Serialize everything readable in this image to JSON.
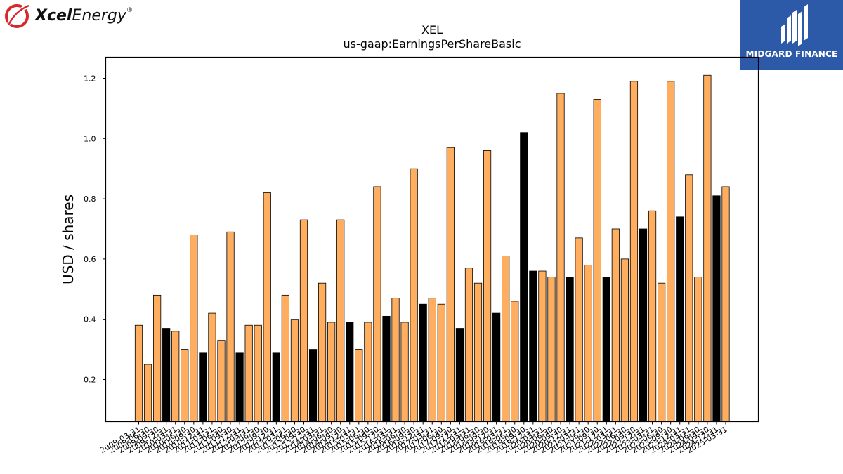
{
  "brand": {
    "name_bold": "Xcel",
    "name_rest": "Energy",
    "registered": "®"
  },
  "partner": {
    "name": "MIDGARD FINANCE",
    "bg_color": "#2c5aa8"
  },
  "colors": {
    "annual_bar": "#000000",
    "quarterly_bar": "#ffad5e",
    "bar_edge": "#000000",
    "xcel_red": "#d9272e"
  },
  "chart_data": {
    "type": "bar",
    "title": "XEL",
    "subtitle": "us-gaap:EarningsPerShareBasic",
    "xlabel": "",
    "ylabel": "USD / shares",
    "ylim": [
      0.06,
      1.27
    ],
    "yticks": [
      0.2,
      0.4,
      0.6,
      0.8,
      1.0,
      1.2
    ],
    "ytick_labels": [
      "0.2",
      "0.4",
      "0.6",
      "0.8",
      "1.0",
      "1.2"
    ],
    "grid": false,
    "categories": [
      "2009-03-31",
      "2009-06-30",
      "2009-09-30",
      "2009-12-31",
      "2010-03-31",
      "2010-06-30",
      "2010-09-30",
      "2010-12-31",
      "2011-03-31",
      "2011-06-30",
      "2011-09-30",
      "2011-12-31",
      "2012-03-31",
      "2012-06-30",
      "2012-09-30",
      "2012-12-31",
      "2013-03-31",
      "2013-06-30",
      "2013-09-30",
      "2013-12-31",
      "2014-03-31",
      "2014-06-30",
      "2014-09-30",
      "2014-12-31",
      "2015-03-31",
      "2015-06-30",
      "2015-09-30",
      "2015-12-31",
      "2016-03-31",
      "2016-06-30",
      "2016-09-30",
      "2016-12-31",
      "2017-03-31",
      "2017-06-30",
      "2017-09-30",
      "2017-12-31",
      "2018-03-31",
      "2018-06-30",
      "2018-09-30",
      "2018-12-31",
      "2019-03-31",
      "2019-06-30",
      "2019-09-30",
      "2019-12-31",
      "2020-03-31",
      "2020-06-30",
      "2020-09-30",
      "2020-12-31",
      "2021-03-31",
      "2021-06-30",
      "2021-09-30",
      "2021-12-31",
      "2022-03-31",
      "2022-06-30",
      "2022-09-30",
      "2022-12-31",
      "2023-03-31",
      "2023-06-30",
      "2023-09-30",
      "2023-12-31",
      "2024-03-31",
      "2024-06-30",
      "2024-09-30",
      "2024-12-31",
      "2025-03-31"
    ],
    "values": [
      0.38,
      0.25,
      0.48,
      0.37,
      0.36,
      0.3,
      0.68,
      0.29,
      0.42,
      0.33,
      0.69,
      0.29,
      0.38,
      0.38,
      0.82,
      0.29,
      0.48,
      0.4,
      0.73,
      0.3,
      0.52,
      0.39,
      0.73,
      0.39,
      0.3,
      0.39,
      0.84,
      0.41,
      0.47,
      0.39,
      0.9,
      0.45,
      0.47,
      0.45,
      0.97,
      0.37,
      0.57,
      0.52,
      0.96,
      0.42,
      0.61,
      0.46,
      1.02,
      0.56,
      0.56,
      0.54,
      1.15,
      0.54,
      0.67,
      0.58,
      1.13,
      0.54,
      0.7,
      0.6,
      1.19,
      0.7,
      0.76,
      0.52,
      1.19,
      0.74,
      0.88,
      0.54,
      1.21,
      0.81,
      0.84
    ],
    "annual_flags": [
      false,
      false,
      false,
      true,
      false,
      false,
      false,
      true,
      false,
      false,
      false,
      true,
      false,
      false,
      false,
      true,
      false,
      false,
      false,
      true,
      false,
      false,
      false,
      true,
      false,
      false,
      false,
      true,
      false,
      false,
      false,
      true,
      false,
      false,
      false,
      true,
      false,
      false,
      false,
      true,
      false,
      false,
      true,
      true,
      false,
      false,
      false,
      true,
      false,
      false,
      false,
      true,
      false,
      false,
      false,
      true,
      false,
      false,
      false,
      true,
      false,
      false,
      false,
      true,
      false
    ]
  }
}
